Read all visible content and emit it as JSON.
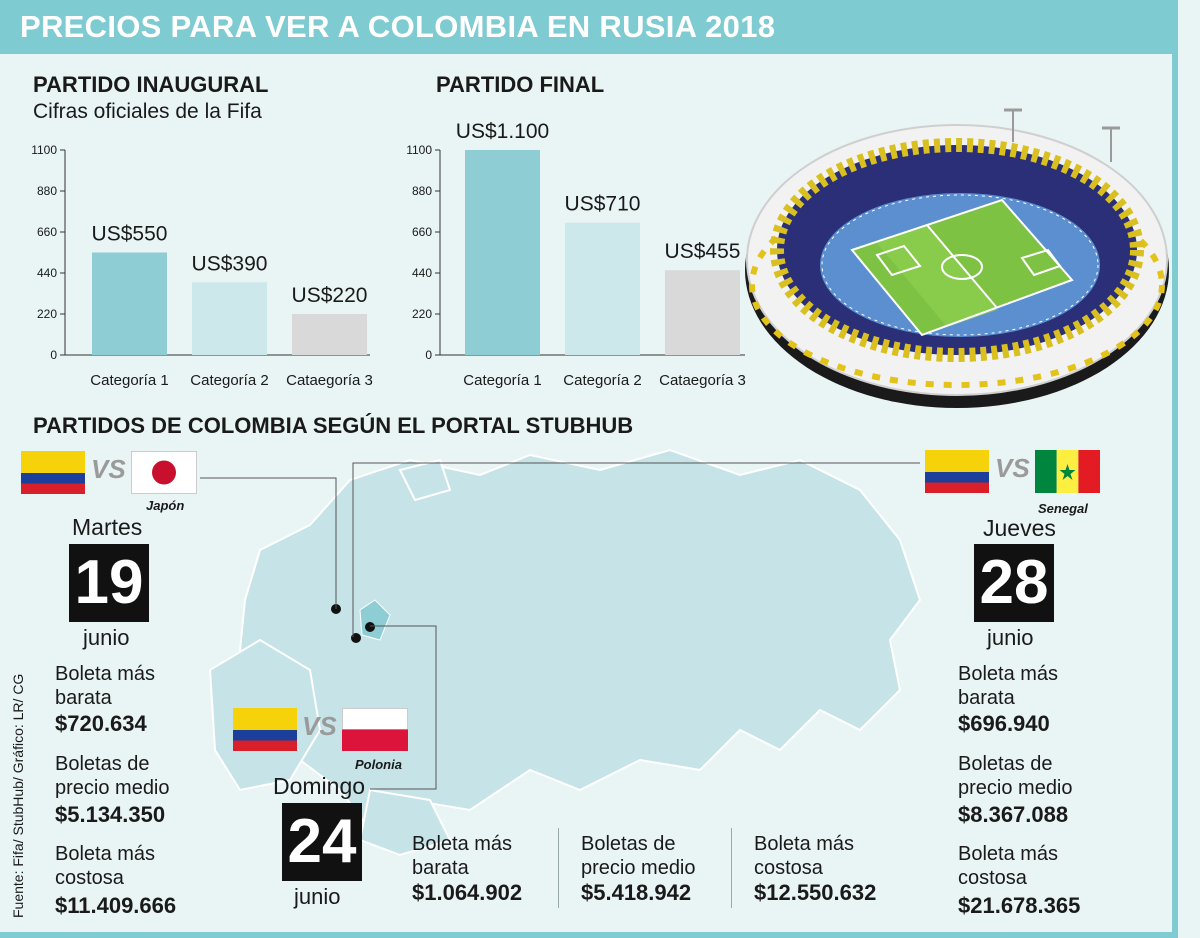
{
  "title": "PRECIOS PARA VER A COLOMBIA EN RUSIA 2018",
  "inaugural": {
    "heading": "PARTIDO INAUGURAL",
    "subheading": "Cifras oficiales de la Fifa"
  },
  "final": {
    "heading": "PARTIDO FINAL"
  },
  "chart_data": [
    {
      "type": "bar",
      "title": "PARTIDO INAUGURAL",
      "categories": [
        "Categoría 1",
        "Categoría 2",
        "Cataegoría 3"
      ],
      "values": [
        550,
        390,
        220
      ],
      "data_labels": [
        "US$550",
        "US$390",
        "US$220"
      ],
      "ylim": [
        0,
        1100
      ],
      "yticks": [
        "0",
        "220",
        "440",
        "660",
        "880",
        "1100"
      ],
      "colors": [
        "#8dcdd3",
        "#cce8eb",
        "#d9d9d9"
      ],
      "grid": false
    },
    {
      "type": "bar",
      "title": "PARTIDO FINAL",
      "categories": [
        "Categoría 1",
        "Categoría 2",
        "Cataegoría 3"
      ],
      "values": [
        1100,
        710,
        455
      ],
      "data_labels": [
        "US$1.100",
        "US$710",
        "US$455"
      ],
      "ylim": [
        0,
        1100
      ],
      "yticks": [
        "0",
        "220",
        "440",
        "660",
        "880",
        "1100"
      ],
      "colors": [
        "#8dcdd3",
        "#cce8eb",
        "#d9d9d9"
      ],
      "grid": false
    }
  ],
  "stubhub": {
    "heading": "PARTIDOS DE COLOMBIA SEGÚN EL PORTAL STUBHUB",
    "vs": "VS",
    "matches": [
      {
        "opponent": "Japón",
        "day_name": "Martes",
        "day": "19",
        "month": "junio",
        "prices": [
          {
            "label": "Boleta más barata",
            "value": "$720.634"
          },
          {
            "label": "Boletas de precio medio",
            "value": "$5.134.350"
          },
          {
            "label": "Boleta más costosa",
            "value": "$11.409.666"
          }
        ]
      },
      {
        "opponent": "Polonia",
        "day_name": "Domingo",
        "day": "24",
        "month": "junio",
        "prices": [
          {
            "label": "Boleta más barata",
            "value": "$1.064.902"
          },
          {
            "label": "Boletas de precio medio",
            "value": "$5.418.942"
          },
          {
            "label": "Boleta más costosa",
            "value": "$12.550.632"
          }
        ]
      },
      {
        "opponent": "Senegal",
        "day_name": "Jueves",
        "day": "28",
        "month": "junio",
        "prices": [
          {
            "label": "Boleta más barata",
            "value": "$696.940"
          },
          {
            "label": "Boletas de precio medio",
            "value": "$8.367.088"
          },
          {
            "label": "Boleta más costosa",
            "value": "$21.678.365"
          }
        ]
      }
    ]
  },
  "source": "Fuente: Fifa/ StubHub/ Gráfico: LR/ CG",
  "colors": {
    "banner": "#7fcbd2",
    "background": "#e9f4f5",
    "map": "#c6e4e8"
  }
}
